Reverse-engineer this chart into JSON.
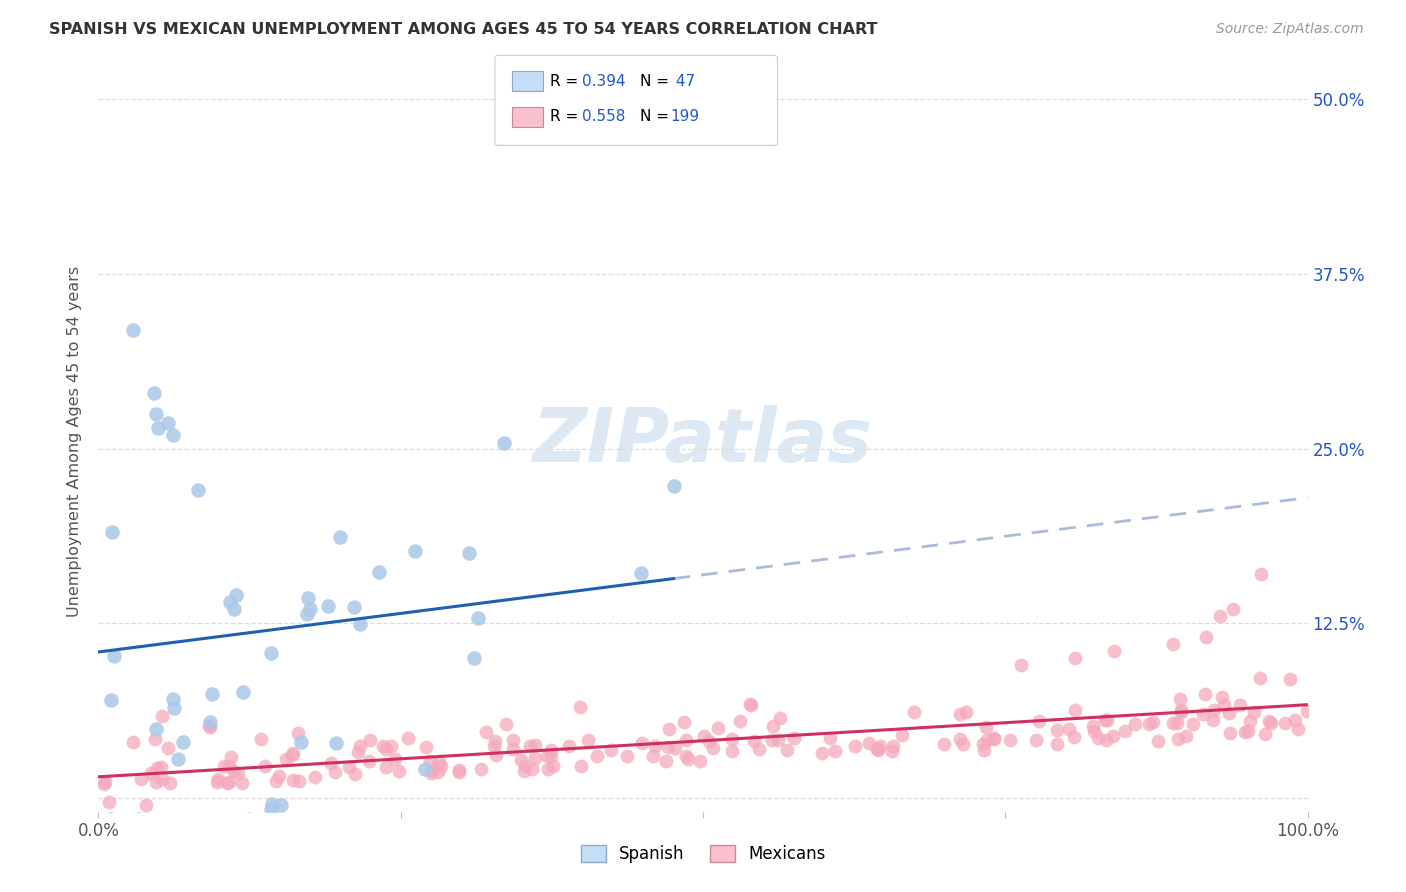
{
  "title": "SPANISH VS MEXICAN UNEMPLOYMENT AMONG AGES 45 TO 54 YEARS CORRELATION CHART",
  "source": "Source: ZipAtlas.com",
  "ylabel": "Unemployment Among Ages 45 to 54 years",
  "xlim": [
    0,
    100
  ],
  "ylim": [
    -1,
    52
  ],
  "y_ticks": [
    0,
    12.5,
    25.0,
    37.5,
    50.0
  ],
  "x_ticks": [
    0,
    25,
    50,
    75,
    100
  ],
  "x_tick_labels": [
    "0.0%",
    "",
    "",
    "",
    "100.0%"
  ],
  "y_tick_labels": [
    "",
    "12.5%",
    "25.0%",
    "37.5%",
    "50.0%"
  ],
  "background_color": "#ffffff",
  "spanish_R": 0.394,
  "spanish_N": 47,
  "mexican_R": 0.558,
  "mexican_N": 199,
  "spanish_dot_color": "#aac8e8",
  "mexican_dot_color": "#f5a8bc",
  "spanish_line_color": "#2060b0",
  "spanish_dash_color": "#aabbdd",
  "mexican_line_color": "#d03060",
  "legend_fill_spanish": "#c5ddf5",
  "legend_fill_mexican": "#f9c0ce",
  "legend_edge_spanish": "#88aacc",
  "legend_edge_mexican": "#cc8899",
  "legend_text_color": "#2255cc",
  "grid_color": "#dddddd",
  "title_color": "#333333",
  "source_color": "#999999",
  "ylabel_color": "#555555",
  "watermark_color": "#dde8f5"
}
